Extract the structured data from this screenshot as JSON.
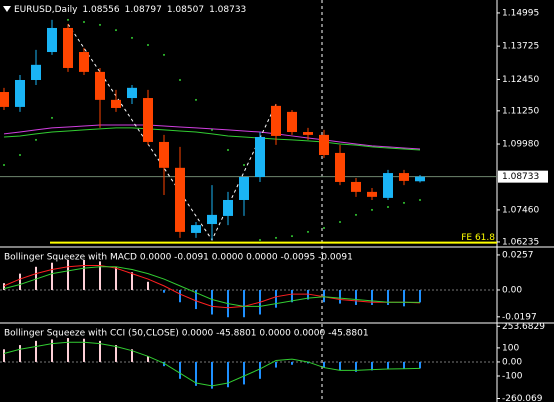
{
  "chart_data": [
    {
      "type": "candlestick",
      "title": "EURUSD,Daily",
      "open": [
        1.1197,
        1.114,
        1.1243,
        1.135,
        1.1442,
        1.135,
        1.1274,
        1.1167,
        1.1174,
        1.1174,
        1.1006,
        1.0907,
        1.0658,
        1.0692,
        1.0723,
        1.0784,
        1.0872,
        1.1144,
        1.1121,
        1.1044,
        1.1033,
        1.0964,
        1.0853,
        1.0815,
        1.0792,
        1.0887,
        1.08556
      ],
      "high": [
        1.1213,
        1.1262,
        1.1358,
        1.1473,
        1.1457,
        1.1366,
        1.1289,
        1.1205,
        1.1224,
        1.1205,
        1.1033,
        1.0987,
        1.07,
        1.0841,
        1.0815,
        1.0872,
        1.1044,
        1.1151,
        1.1128,
        1.106,
        1.1052,
        1.0995,
        1.0868,
        1.083,
        1.0899,
        1.0899,
        1.08797
      ],
      "low": [
        1.1128,
        1.1121,
        1.1224,
        1.1339,
        1.1274,
        1.1262,
        1.106,
        1.1121,
        1.1151,
        1.0995,
        1.0803,
        1.0639,
        1.0639,
        1.0631,
        1.0688,
        1.0723,
        1.0853,
        1.0995,
        1.1033,
        1.1014,
        1.0945,
        1.0841,
        1.0796,
        1.0784,
        1.0784,
        1.0841,
        1.08507
      ],
      "close": [
        1.114,
        1.1243,
        1.1301,
        1.1442,
        1.1289,
        1.1274,
        1.1167,
        1.1136,
        1.1213,
        1.1006,
        1.0907,
        1.0662,
        1.0688,
        1.0727,
        1.0784,
        1.0872,
        1.1025,
        1.1029,
        1.1044,
        1.1033,
        1.0956,
        1.0853,
        1.0815,
        1.0796,
        1.0887,
        1.0857,
        1.08733
      ],
      "up_color": "#1ab4f5",
      "down_color": "#ff4500",
      "ylim": [
        1.0608,
        1.1549
      ],
      "yticks": [
        1.14995,
        1.13725,
        {
          "value": 1.1245,
          "label": "1.12450"
        },
        {
          "value": 1.1125,
          "label": "1.11250"
        },
        {
          "value": 1.0998,
          "label": "1.09980"
        },
        {
          "value": 1.0746,
          "label": "1.07460"
        },
        1.06235
      ],
      "price_line_color": "#6f876f",
      "lines": [
        {
          "color": "#d040e0",
          "values": [
            1.1037,
            1.1044,
            1.1052,
            1.106,
            1.1063,
            1.1067,
            1.1071,
            1.1071,
            1.1071,
            1.1071,
            1.1067,
            1.1063,
            1.106,
            1.1056,
            1.1052,
            1.1048,
            1.1044,
            1.1037,
            1.1029,
            1.1021,
            1.1014,
            1.1006,
            1.0998,
            1.0991,
            1.0987,
            1.0983,
            1.0979
          ]
        },
        {
          "color": "#32cd32",
          "values": [
            1.1025,
            1.1029,
            1.1037,
            1.1044,
            1.1048,
            1.1052,
            1.1056,
            1.106,
            1.106,
            1.1056,
            1.1052,
            1.1048,
            1.1044,
            1.1037,
            1.1029,
            1.1025,
            1.1021,
            1.1017,
            1.1014,
            1.101,
            1.1006,
            1.0998,
            1.0994,
            1.0987,
            1.0983,
            1.0979,
            1.0975
          ]
        }
      ],
      "sar": {
        "color": "#32cd32",
        "values": [
          1.0918,
          1.0956,
          1.1014,
          1.1098,
          1.1473,
          1.1465,
          1.1454,
          1.1434,
          1.1404,
          1.1377,
          1.1339,
          1.1243,
          1.1167,
          1.1052,
          1.0975,
          1.0918,
          1.0631,
          1.0639,
          1.0646,
          1.0662,
          1.0677,
          1.07,
          1.0727,
          1.0746,
          1.0757,
          1.0773,
          1.0784
        ]
      },
      "zigzag": {
        "color": "#ffffff",
        "x": [
          4,
          13,
          17
        ],
        "values": [
          1.1457,
          1.0631,
          1.1151
        ]
      },
      "level": {
        "label": "FE 61.8",
        "value": 1.0621,
        "color": "#ffff00"
      }
    },
    {
      "type": "oscillator",
      "title": "Bollinger Squeeze with MACD 0.0000 -0.0091 0.0000 0.0000 -0.0095 -0.0091",
      "values": [
        0.005,
        0.012,
        0.017,
        0.02,
        0.022,
        0.022,
        0.021,
        0.017,
        0.013,
        0.006,
        -0.002,
        -0.009,
        -0.014,
        -0.018,
        -0.02,
        -0.02,
        -0.018,
        -0.013,
        -0.009,
        -0.007,
        -0.009,
        -0.01,
        -0.011,
        -0.011,
        -0.011,
        -0.012,
        -0.0091
      ],
      "pos_color": "#ffd0d8",
      "neg_color": "#1e90ff",
      "lines": [
        {
          "color": "#ff2020",
          "values": [
            0.003,
            0.008,
            0.012,
            0.015,
            0.017,
            0.018,
            0.018,
            0.016,
            0.012,
            0.008,
            0.003,
            -0.003,
            -0.008,
            -0.012,
            -0.013,
            -0.012,
            -0.009,
            -0.005,
            -0.003,
            -0.003,
            -0.005,
            -0.007,
            -0.008,
            -0.009,
            -0.009,
            -0.009,
            -0.0095
          ]
        },
        {
          "color": "#32cd32",
          "values": [
            0.001,
            0.004,
            0.008,
            0.012,
            0.014,
            0.016,
            0.017,
            0.017,
            0.015,
            0.012,
            0.008,
            0.003,
            -0.002,
            -0.007,
            -0.01,
            -0.012,
            -0.012,
            -0.01,
            -0.008,
            -0.006,
            -0.005,
            -0.006,
            -0.007,
            -0.008,
            -0.009,
            -0.009,
            -0.0091
          ]
        }
      ],
      "ylim": [
        -0.0235,
        0.0308
      ],
      "yticks": [
        0.0257,
        {
          "value": 0,
          "label": "0.00"
        },
        -0.0197
      ]
    },
    {
      "type": "oscillator",
      "title": "Bollinger Squeeze with CCI (50,CLOSE) 0.0000 -45.8801 0.0000 0.0000 -45.8801",
      "values": [
        90,
        120,
        150,
        160,
        170,
        165,
        150,
        120,
        90,
        40,
        -30,
        -120,
        -170,
        -190,
        -180,
        -160,
        -120,
        -40,
        -20,
        -10,
        -40,
        -60,
        -70,
        -60,
        -50,
        -50,
        -45.8801
      ],
      "pos_color": "#ffd0d8",
      "neg_color": "#1e90ff",
      "lines": [
        {
          "color": "#32cd32",
          "values": [
            60,
            90,
            110,
            130,
            140,
            140,
            130,
            110,
            80,
            40,
            -10,
            -80,
            -150,
            -170,
            -150,
            -100,
            -50,
            10,
            20,
            0,
            -40,
            -60,
            -60,
            -55,
            -50,
            -48,
            -45.8801
          ]
        }
      ],
      "ylim": [
        -285,
        270
      ],
      "yticks": [
        253.6829,
        100,
        {
          "value": 0,
          "label": "0.00"
        },
        -100,
        -260.069
      ]
    }
  ]
}
